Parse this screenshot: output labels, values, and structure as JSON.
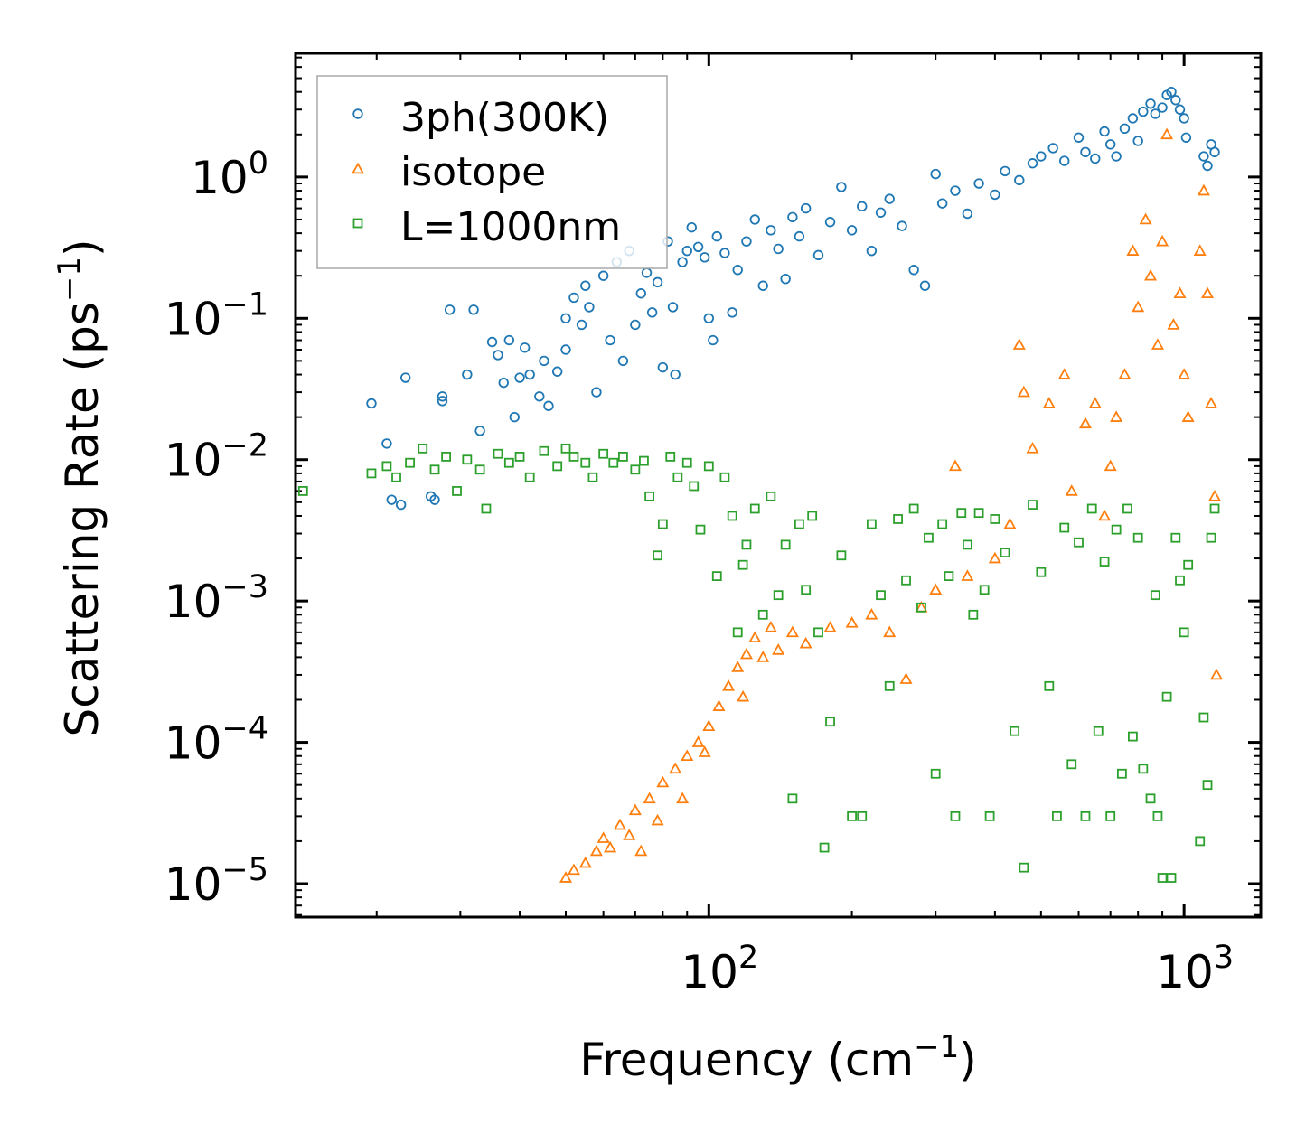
{
  "chart_data": {
    "type": "scatter",
    "xscale": "log",
    "yscale": "log",
    "xlim": [
      13.5,
      1450
    ],
    "ylim": [
      5.8e-06,
      7.5
    ],
    "xlabel": {
      "text": "Frequency (cm",
      "sup": "−1",
      "tail": ")"
    },
    "ylabel": {
      "text": "Scattering Rate (ps",
      "sup": "−1",
      "tail": ")"
    },
    "xticks": [
      {
        "value": 100,
        "base": "10",
        "exp": "2"
      },
      {
        "value": 1000,
        "base": "10",
        "exp": "3"
      }
    ],
    "yticks": [
      {
        "value": 1,
        "base": "10",
        "exp": "0"
      },
      {
        "value": 0.1,
        "base": "10",
        "exp": "−1"
      },
      {
        "value": 0.01,
        "base": "10",
        "exp": "−2"
      },
      {
        "value": 0.001,
        "base": "10",
        "exp": "−3"
      },
      {
        "value": 0.0001,
        "base": "10",
        "exp": "−4"
      },
      {
        "value": 1e-05,
        "base": "10",
        "exp": "−5"
      }
    ],
    "legend_position": "top-left",
    "series": [
      {
        "name": "3ph(300K)",
        "marker": "circle",
        "color": "#1f77b4",
        "points": [
          [
            19.5,
            0.025
          ],
          [
            21,
            0.013
          ],
          [
            21.5,
            0.0052
          ],
          [
            22.5,
            0.0048
          ],
          [
            23,
            0.038
          ],
          [
            26,
            0.0055
          ],
          [
            26.5,
            0.0052
          ],
          [
            27.5,
            0.028
          ],
          [
            27.5,
            0.026
          ],
          [
            28.5,
            0.115
          ],
          [
            31,
            0.04
          ],
          [
            32,
            0.115
          ],
          [
            33,
            0.016
          ],
          [
            35,
            0.068
          ],
          [
            36,
            0.055
          ],
          [
            37,
            0.035
          ],
          [
            38,
            0.07
          ],
          [
            39,
            0.02
          ],
          [
            40,
            0.038
          ],
          [
            41,
            0.062
          ],
          [
            42,
            0.04
          ],
          [
            44,
            0.028
          ],
          [
            45,
            0.05
          ],
          [
            46,
            0.024
          ],
          [
            48,
            0.042
          ],
          [
            50,
            0.1
          ],
          [
            50,
            0.06
          ],
          [
            52,
            0.14
          ],
          [
            54,
            0.09
          ],
          [
            55,
            0.17
          ],
          [
            56,
            0.12
          ],
          [
            58,
            0.03
          ],
          [
            60,
            0.2
          ],
          [
            62,
            0.07
          ],
          [
            64,
            0.25
          ],
          [
            66,
            0.05
          ],
          [
            68,
            0.3
          ],
          [
            70,
            0.09
          ],
          [
            72,
            0.15
          ],
          [
            74,
            0.21
          ],
          [
            76,
            0.11
          ],
          [
            78,
            0.18
          ],
          [
            80,
            0.045
          ],
          [
            82,
            0.35
          ],
          [
            84,
            0.12
          ],
          [
            85,
            0.04
          ],
          [
            88,
            0.25
          ],
          [
            90,
            0.3
          ],
          [
            92,
            0.44
          ],
          [
            95,
            0.32
          ],
          [
            98,
            0.27
          ],
          [
            100,
            0.1
          ],
          [
            102,
            0.07
          ],
          [
            104,
            0.38
          ],
          [
            108,
            0.29
          ],
          [
            112,
            0.11
          ],
          [
            115,
            0.22
          ],
          [
            120,
            0.35
          ],
          [
            125,
            0.5
          ],
          [
            130,
            0.17
          ],
          [
            135,
            0.42
          ],
          [
            140,
            0.31
          ],
          [
            145,
            0.19
          ],
          [
            150,
            0.52
          ],
          [
            155,
            0.38
          ],
          [
            160,
            0.6
          ],
          [
            170,
            0.28
          ],
          [
            180,
            0.48
          ],
          [
            190,
            0.85
          ],
          [
            200,
            0.42
          ],
          [
            210,
            0.62
          ],
          [
            220,
            0.3
          ],
          [
            230,
            0.56
          ],
          [
            240,
            0.7
          ],
          [
            255,
            0.45
          ],
          [
            270,
            0.22
          ],
          [
            285,
            0.17
          ],
          [
            300,
            1.05
          ],
          [
            310,
            0.65
          ],
          [
            330,
            0.8
          ],
          [
            350,
            0.55
          ],
          [
            370,
            0.9
          ],
          [
            400,
            0.75
          ],
          [
            420,
            1.1
          ],
          [
            450,
            0.95
          ],
          [
            480,
            1.25
          ],
          [
            500,
            1.4
          ],
          [
            530,
            1.6
          ],
          [
            560,
            1.3
          ],
          [
            600,
            1.9
          ],
          [
            620,
            1.5
          ],
          [
            650,
            1.35
          ],
          [
            680,
            2.1
          ],
          [
            700,
            1.7
          ],
          [
            720,
            1.4
          ],
          [
            750,
            2.2
          ],
          [
            780,
            2.6
          ],
          [
            800,
            1.8
          ],
          [
            820,
            2.9
          ],
          [
            850,
            3.3
          ],
          [
            870,
            2.8
          ],
          [
            900,
            3.1
          ],
          [
            920,
            3.8
          ],
          [
            940,
            4.0
          ],
          [
            960,
            3.5
          ],
          [
            980,
            3.0
          ],
          [
            1000,
            2.6
          ],
          [
            1010,
            1.9
          ],
          [
            1100,
            1.4
          ],
          [
            1120,
            1.2
          ],
          [
            1140,
            1.7
          ],
          [
            1160,
            1.5
          ]
        ]
      },
      {
        "name": "isotope",
        "marker": "triangle",
        "color": "#ff7f0e",
        "points": [
          [
            50,
            1.1e-05
          ],
          [
            52,
            1.25e-05
          ],
          [
            55,
            1.4e-05
          ],
          [
            58,
            1.7e-05
          ],
          [
            60,
            2.1e-05
          ],
          [
            62,
            1.8e-05
          ],
          [
            65,
            2.6e-05
          ],
          [
            68,
            2.2e-05
          ],
          [
            70,
            3.3e-05
          ],
          [
            72,
            1.7e-05
          ],
          [
            75,
            4e-05
          ],
          [
            78,
            2.8e-05
          ],
          [
            80,
            5.2e-05
          ],
          [
            85,
            6.5e-05
          ],
          [
            88,
            4e-05
          ],
          [
            90,
            8e-05
          ],
          [
            95,
            0.0001
          ],
          [
            98,
            8.5e-05
          ],
          [
            100,
            0.00013
          ],
          [
            105,
            0.00018
          ],
          [
            110,
            0.00025
          ],
          [
            115,
            0.00034
          ],
          [
            118,
            0.00021
          ],
          [
            120,
            0.00042
          ],
          [
            125,
            0.00055
          ],
          [
            130,
            0.0004
          ],
          [
            135,
            0.00065
          ],
          [
            140,
            0.00045
          ],
          [
            150,
            0.0006
          ],
          [
            160,
            0.0005
          ],
          [
            180,
            0.00065
          ],
          [
            200,
            0.0007
          ],
          [
            220,
            0.0008
          ],
          [
            240,
            0.0006
          ],
          [
            260,
            0.00028
          ],
          [
            280,
            0.0009
          ],
          [
            300,
            0.0012
          ],
          [
            330,
            0.009
          ],
          [
            350,
            0.0015
          ],
          [
            400,
            0.002
          ],
          [
            430,
            0.0035
          ],
          [
            450,
            0.065
          ],
          [
            460,
            0.03
          ],
          [
            480,
            0.012
          ],
          [
            520,
            0.025
          ],
          [
            560,
            0.04
          ],
          [
            580,
            0.006
          ],
          [
            620,
            0.018
          ],
          [
            650,
            0.025
          ],
          [
            680,
            0.004
          ],
          [
            700,
            0.009
          ],
          [
            720,
            0.02
          ],
          [
            750,
            0.04
          ],
          [
            780,
            0.3
          ],
          [
            800,
            0.12
          ],
          [
            830,
            0.5
          ],
          [
            850,
            0.2
          ],
          [
            880,
            0.065
          ],
          [
            900,
            0.35
          ],
          [
            920,
            2.0
          ],
          [
            950,
            0.09
          ],
          [
            980,
            0.15
          ],
          [
            1000,
            0.04
          ],
          [
            1020,
            0.02
          ],
          [
            1080,
            0.3
          ],
          [
            1100,
            0.8
          ],
          [
            1120,
            0.15
          ],
          [
            1140,
            0.025
          ],
          [
            1160,
            0.0055
          ],
          [
            1170,
            0.0003
          ]
        ]
      },
      {
        "name": "L=1000nm",
        "marker": "square",
        "color": "#2ca02c",
        "points": [
          [
            14,
            0.006
          ],
          [
            19.5,
            0.008
          ],
          [
            21,
            0.009
          ],
          [
            22,
            0.0075
          ],
          [
            23.5,
            0.0095
          ],
          [
            25,
            0.012
          ],
          [
            26.5,
            0.0085
          ],
          [
            28,
            0.0105
          ],
          [
            29.5,
            0.006
          ],
          [
            31,
            0.01
          ],
          [
            33,
            0.0085
          ],
          [
            34,
            0.0045
          ],
          [
            36,
            0.011
          ],
          [
            38,
            0.0095
          ],
          [
            40,
            0.0105
          ],
          [
            42,
            0.0075
          ],
          [
            45,
            0.0115
          ],
          [
            48,
            0.009
          ],
          [
            50,
            0.012
          ],
          [
            52,
            0.0105
          ],
          [
            55,
            0.0095
          ],
          [
            57,
            0.0075
          ],
          [
            60,
            0.011
          ],
          [
            63,
            0.0095
          ],
          [
            66,
            0.0105
          ],
          [
            70,
            0.0085
          ],
          [
            73,
            0.0098
          ],
          [
            75,
            0.0055
          ],
          [
            78,
            0.0021
          ],
          [
            80,
            0.0035
          ],
          [
            83,
            0.0105
          ],
          [
            86,
            0.0075
          ],
          [
            90,
            0.0095
          ],
          [
            93,
            0.0065
          ],
          [
            96,
            0.0032
          ],
          [
            100,
            0.009
          ],
          [
            104,
            0.0015
          ],
          [
            108,
            0.0075
          ],
          [
            112,
            0.004
          ],
          [
            115,
            0.0006
          ],
          [
            118,
            0.0018
          ],
          [
            120,
            0.0025
          ],
          [
            125,
            0.0045
          ],
          [
            130,
            0.0008
          ],
          [
            135,
            0.0055
          ],
          [
            140,
            0.0011
          ],
          [
            145,
            0.0025
          ],
          [
            150,
            4e-05
          ],
          [
            155,
            0.0035
          ],
          [
            160,
            0.0012
          ],
          [
            165,
            0.004
          ],
          [
            170,
            0.0006
          ],
          [
            175,
            1.8e-05
          ],
          [
            180,
            0.00014
          ],
          [
            190,
            0.0021
          ],
          [
            200,
            3e-05
          ],
          [
            210,
            3e-05
          ],
          [
            220,
            0.0035
          ],
          [
            230,
            0.0011
          ],
          [
            240,
            0.00025
          ],
          [
            250,
            0.0038
          ],
          [
            260,
            0.0014
          ],
          [
            270,
            0.0045
          ],
          [
            280,
            0.0009
          ],
          [
            290,
            0.0028
          ],
          [
            300,
            6e-05
          ],
          [
            310,
            0.0035
          ],
          [
            320,
            0.0015
          ],
          [
            330,
            3e-05
          ],
          [
            340,
            0.0042
          ],
          [
            350,
            0.0025
          ],
          [
            360,
            0.0008
          ],
          [
            370,
            0.0042
          ],
          [
            380,
            0.0012
          ],
          [
            390,
            3e-05
          ],
          [
            400,
            0.0038
          ],
          [
            420,
            0.0022
          ],
          [
            440,
            0.00012
          ],
          [
            460,
            1.3e-05
          ],
          [
            480,
            0.0048
          ],
          [
            500,
            0.0016
          ],
          [
            520,
            0.00025
          ],
          [
            540,
            3e-05
          ],
          [
            560,
            0.0033
          ],
          [
            580,
            7e-05
          ],
          [
            600,
            0.0026
          ],
          [
            620,
            3e-05
          ],
          [
            640,
            0.0045
          ],
          [
            660,
            0.00012
          ],
          [
            680,
            0.0019
          ],
          [
            700,
            3e-05
          ],
          [
            720,
            0.0032
          ],
          [
            740,
            6e-05
          ],
          [
            760,
            0.0045
          ],
          [
            780,
            0.00011
          ],
          [
            800,
            0.0028
          ],
          [
            820,
            6.5e-05
          ],
          [
            850,
            4e-05
          ],
          [
            870,
            0.0011
          ],
          [
            880,
            3e-05
          ],
          [
            900,
            1.1e-05
          ],
          [
            920,
            0.00021
          ],
          [
            940,
            1.1e-05
          ],
          [
            960,
            0.0028
          ],
          [
            980,
            0.0014
          ],
          [
            1000,
            0.0006
          ],
          [
            1020,
            0.0018
          ],
          [
            1080,
            2e-05
          ],
          [
            1100,
            0.00015
          ],
          [
            1120,
            5e-05
          ],
          [
            1140,
            0.0028
          ],
          [
            1160,
            0.0045
          ]
        ]
      }
    ]
  }
}
